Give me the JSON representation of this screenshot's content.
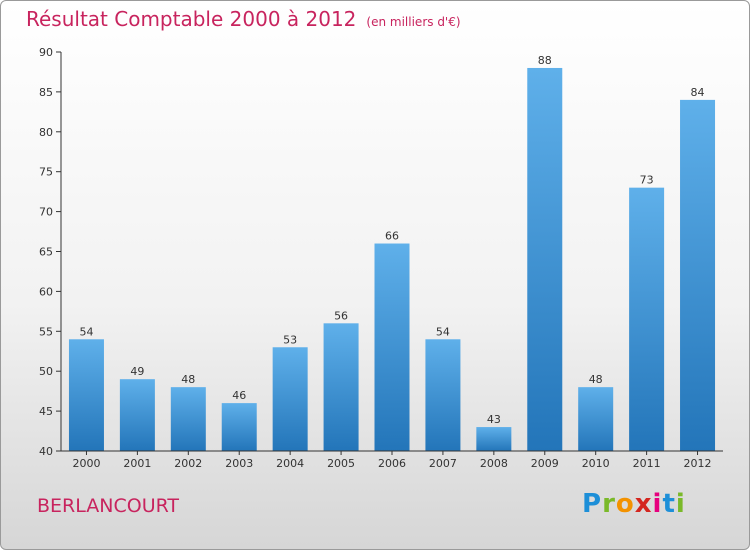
{
  "chart_data": {
    "type": "bar",
    "title": "Résultat Comptable 2000 à 2012",
    "unit": "(en milliers d'€)",
    "categories": [
      "2000",
      "2001",
      "2002",
      "2003",
      "2004",
      "2005",
      "2006",
      "2007",
      "2008",
      "2009",
      "2010",
      "2011",
      "2012"
    ],
    "values": [
      54,
      49,
      48,
      46,
      53,
      56,
      66,
      54,
      43,
      88,
      48,
      73,
      84
    ],
    "ylim": [
      40,
      90
    ],
    "yticks": [
      40,
      45,
      50,
      55,
      60,
      65,
      70,
      75,
      80,
      85,
      90
    ],
    "grid": false,
    "xlabel": "",
    "ylabel": ""
  },
  "location": "BERLANCOURT",
  "logo": {
    "letters": [
      "P",
      "r",
      "o",
      "x",
      "i",
      "t",
      "i"
    ],
    "colors": [
      "#1d8fd8",
      "#7ab929",
      "#f39200",
      "#d4261f",
      "#e6007e",
      "#1d8fd8",
      "#7ab929"
    ]
  },
  "colors": {
    "title": "#c8245e",
    "bar_top": "#5fb0ea",
    "bar_bottom": "#2375b9",
    "axis": "#333333"
  }
}
